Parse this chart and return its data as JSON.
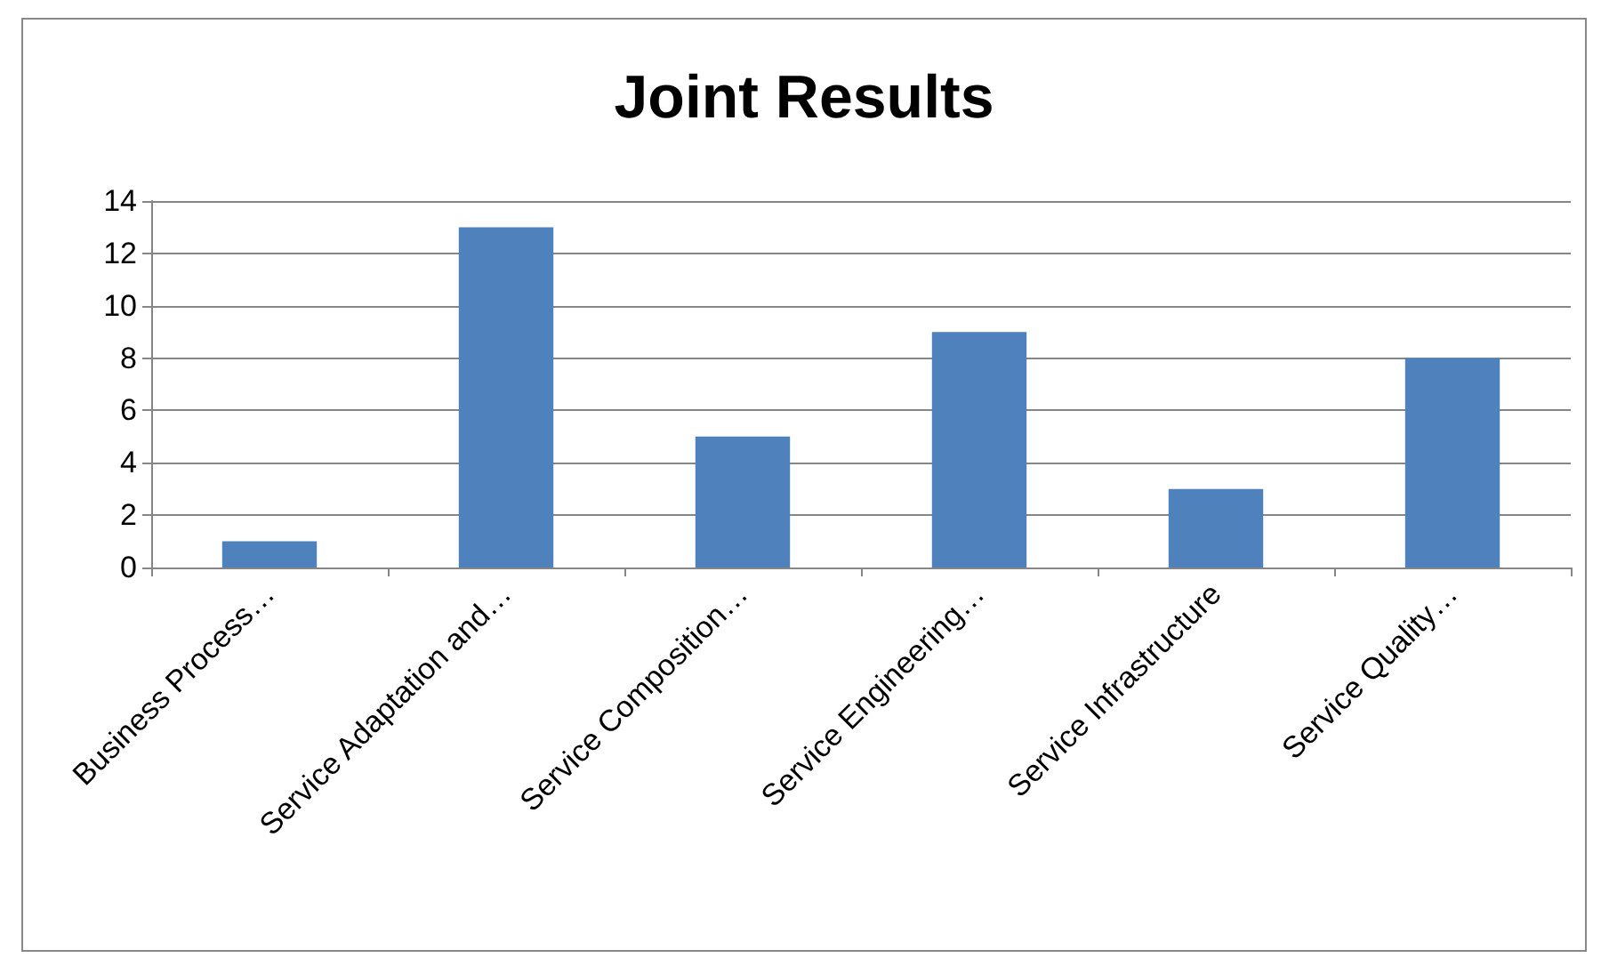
{
  "chart_data": {
    "type": "bar",
    "title": "Joint Results",
    "categories": [
      "Business Process…",
      "Service Adaptation and…",
      "Service Composition…",
      "Service Engineering…",
      "Service Infrastructure",
      "Service Quality…"
    ],
    "values": [
      1,
      13,
      5,
      9,
      3,
      8
    ],
    "color": "#4f81bd",
    "ylim": [
      0,
      14
    ],
    "yticks": [
      0,
      2,
      4,
      6,
      8,
      10,
      12,
      14
    ],
    "grid": "y"
  }
}
